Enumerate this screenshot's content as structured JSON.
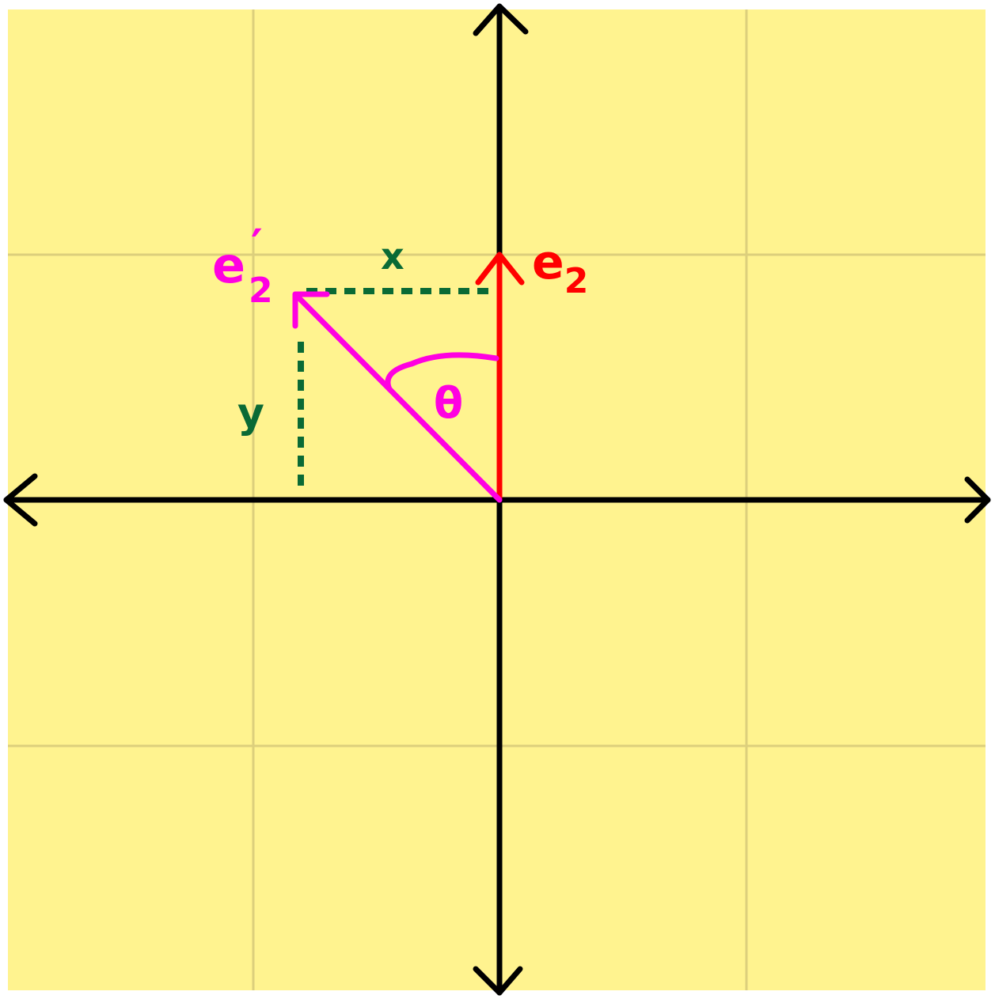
{
  "colors": {
    "background": "#fff38f",
    "grid": "#dccf7c",
    "axes": "#000000",
    "e2": "#ff0000",
    "e2_prime": "#ff00e1",
    "components": "#0a6a35"
  },
  "labels": {
    "e2_base": "e",
    "e2_sub": "2",
    "e2p_base": "e",
    "e2p_sub": "2",
    "e2p_prime": "′",
    "x_component": "x",
    "y_component": "y",
    "angle": "θ"
  }
}
